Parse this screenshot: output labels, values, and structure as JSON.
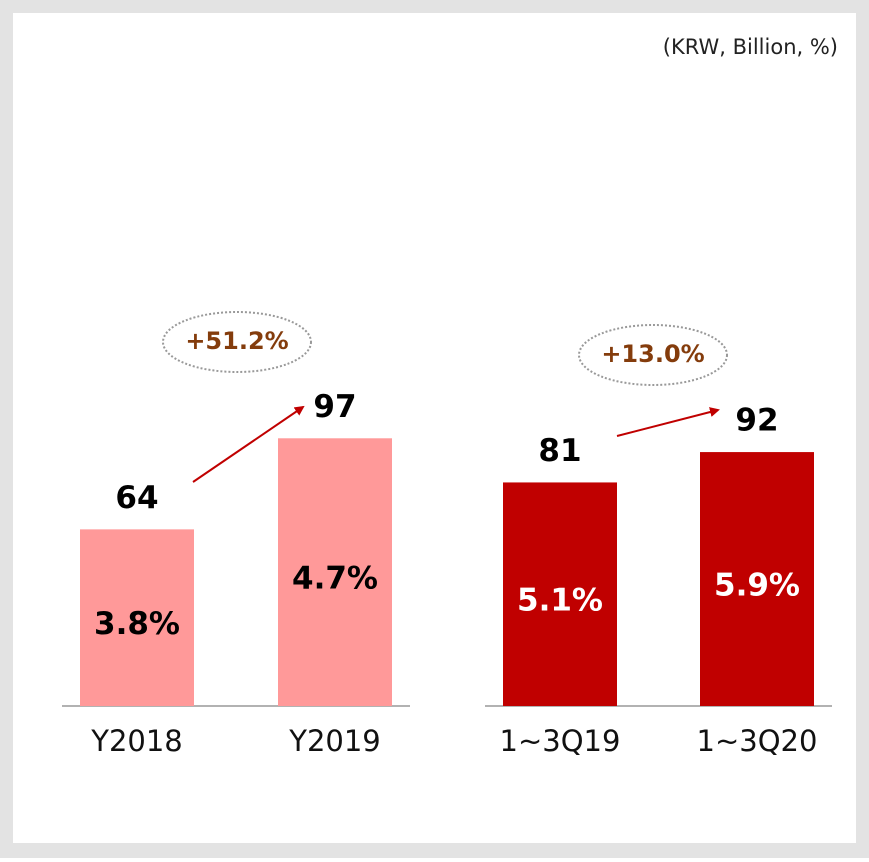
{
  "chart_data": {
    "type": "bar",
    "unit_note": "(KRW, Billion, %)",
    "categories": [
      "Y2018",
      "Y2019",
      "1~3Q19",
      "1~3Q20"
    ],
    "values": [
      64,
      97,
      81,
      92
    ],
    "colors": [
      "#ff9999",
      "#ff9999",
      "#c00000",
      "#c00000"
    ],
    "bar_labels": [
      "3.8%",
      "4.7%",
      "5.1%",
      "5.9%"
    ],
    "bar_label_colors": [
      "#000000",
      "#000000",
      "#ffffff",
      "#ffffff"
    ],
    "growth_labels": [
      "+51.2%",
      "+13.0%"
    ]
  }
}
